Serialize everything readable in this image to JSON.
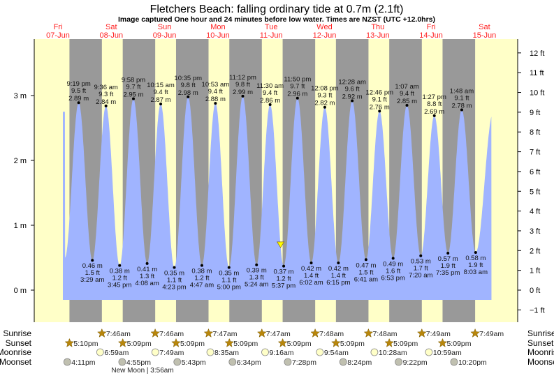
{
  "chart_data": {
    "type": "area",
    "title": "Fletchers Beach: falling  ordinary tide at 0.7m (2.1ft)",
    "subtitle": "Image captured One hour and 24 minutes before low water. Times are NZST (UTC +12.0hrs)",
    "days": [
      {
        "weekday": "Fri",
        "date": "07-Jun"
      },
      {
        "weekday": "Sat",
        "date": "08-Jun"
      },
      {
        "weekday": "Sun",
        "date": "09-Jun"
      },
      {
        "weekday": "Mon",
        "date": "10-Jun"
      },
      {
        "weekday": "Tue",
        "date": "11-Jun"
      },
      {
        "weekday": "Wed",
        "date": "12-Jun"
      },
      {
        "weekday": "Thu",
        "date": "13-Jun"
      },
      {
        "weekday": "Fri",
        "date": "14-Jun"
      },
      {
        "weekday": "Sat",
        "date": "15-Jun"
      }
    ],
    "y_left": {
      "unit": "m",
      "ticks": [
        "0 m",
        "1 m",
        "2 m",
        "3 m"
      ],
      "values": [
        0,
        1,
        2,
        3
      ],
      "range_m": [
        -0.49,
        3.87
      ]
    },
    "y_right": {
      "unit": "ft",
      "ticks": [
        "−1 ft",
        "0 ft",
        "1 ft",
        "2 ft",
        "3 ft",
        "4 ft",
        "5 ft",
        "6 ft",
        "7 ft",
        "8 ft",
        "9 ft",
        "10 ft",
        "11 ft",
        "12 ft"
      ],
      "values": [
        -1,
        0,
        1,
        2,
        3,
        4,
        5,
        6,
        7,
        8,
        9,
        10,
        11,
        12
      ]
    },
    "current": {
      "height_m": 0.7,
      "height_ft": 2.1,
      "day": "11-Jun",
      "time": "4:13 pm"
    },
    "extremes": [
      {
        "type": "high",
        "day": "07-Jun",
        "time": "9:19 pm",
        "m": 2.89,
        "ft": 9.5
      },
      {
        "type": "low",
        "day": "08-Jun",
        "time": "3:29 am",
        "m": 0.46,
        "ft": 1.5
      },
      {
        "type": "high",
        "day": "08-Jun",
        "time": "9:36 am",
        "m": 2.84,
        "ft": 9.3
      },
      {
        "type": "low",
        "day": "08-Jun",
        "time": "3:45 pm",
        "m": 0.38,
        "ft": 1.2
      },
      {
        "type": "high",
        "day": "08-Jun",
        "time": "9:58 pm",
        "m": 2.95,
        "ft": 9.7
      },
      {
        "type": "low",
        "day": "09-Jun",
        "time": "4:08 am",
        "m": 0.41,
        "ft": 1.3
      },
      {
        "type": "high",
        "day": "09-Jun",
        "time": "10:15 am",
        "m": 2.87,
        "ft": 9.4
      },
      {
        "type": "low",
        "day": "09-Jun",
        "time": "4:23 pm",
        "m": 0.35,
        "ft": 1.1
      },
      {
        "type": "high",
        "day": "09-Jun",
        "time": "10:35 pm",
        "m": 2.98,
        "ft": 9.8
      },
      {
        "type": "low",
        "day": "10-Jun",
        "time": "4:47 am",
        "m": 0.38,
        "ft": 1.2
      },
      {
        "type": "high",
        "day": "10-Jun",
        "time": "10:53 am",
        "m": 2.88,
        "ft": 9.4
      },
      {
        "type": "low",
        "day": "10-Jun",
        "time": "5:00 pm",
        "m": 0.35,
        "ft": 1.1
      },
      {
        "type": "high",
        "day": "10-Jun",
        "time": "11:12 pm",
        "m": 2.99,
        "ft": 9.8
      },
      {
        "type": "low",
        "day": "11-Jun",
        "time": "5:24 am",
        "m": 0.39,
        "ft": 1.3
      },
      {
        "type": "high",
        "day": "11-Jun",
        "time": "11:30 am",
        "m": 2.86,
        "ft": 9.4
      },
      {
        "type": "low",
        "day": "11-Jun",
        "time": "5:37 pm",
        "m": 0.37,
        "ft": 1.2
      },
      {
        "type": "high",
        "day": "11-Jun",
        "time": "11:50 pm",
        "m": 2.96,
        "ft": 9.7
      },
      {
        "type": "low",
        "day": "12-Jun",
        "time": "6:02 am",
        "m": 0.42,
        "ft": 1.4
      },
      {
        "type": "high",
        "day": "12-Jun",
        "time": "12:08 pm",
        "m": 2.82,
        "ft": 9.3
      },
      {
        "type": "low",
        "day": "12-Jun",
        "time": "6:15 pm",
        "m": 0.42,
        "ft": 1.4
      },
      {
        "type": "high",
        "day": "13-Jun",
        "time": "12:28 am",
        "m": 2.92,
        "ft": 9.6
      },
      {
        "type": "low",
        "day": "13-Jun",
        "time": "6:41 am",
        "m": 0.47,
        "ft": 1.5
      },
      {
        "type": "high",
        "day": "13-Jun",
        "time": "12:46 pm",
        "m": 2.76,
        "ft": 9.1
      },
      {
        "type": "low",
        "day": "13-Jun",
        "time": "6:53 pm",
        "m": 0.49,
        "ft": 1.6
      },
      {
        "type": "high",
        "day": "14-Jun",
        "time": "1:07 am",
        "m": 2.85,
        "ft": 9.4
      },
      {
        "type": "low",
        "day": "14-Jun",
        "time": "7:20 am",
        "m": 0.53,
        "ft": 1.7
      },
      {
        "type": "high",
        "day": "14-Jun",
        "time": "1:27 pm",
        "m": 2.69,
        "ft": 8.8
      },
      {
        "type": "low",
        "day": "14-Jun",
        "time": "7:35 pm",
        "m": 0.57,
        "ft": 1.9
      },
      {
        "type": "high",
        "day": "15-Jun",
        "time": "1:48 am",
        "m": 2.78,
        "ft": 9.1
      },
      {
        "type": "low",
        "day": "15-Jun",
        "time": "8:03 am",
        "m": 0.58,
        "ft": 1.9
      }
    ],
    "rows": {
      "sunrise": {
        "label": "Sunrise",
        "events": [
          {
            "day": "08-Jun",
            "time": "7:46am"
          },
          {
            "day": "09-Jun",
            "time": "7:46am"
          },
          {
            "day": "10-Jun",
            "time": "7:47am"
          },
          {
            "day": "11-Jun",
            "time": "7:47am"
          },
          {
            "day": "12-Jun",
            "time": "7:48am"
          },
          {
            "day": "13-Jun",
            "time": "7:48am"
          },
          {
            "day": "14-Jun",
            "time": "7:49am"
          },
          {
            "day": "15-Jun",
            "time": "7:49am"
          }
        ]
      },
      "sunset": {
        "label": "Sunset",
        "events": [
          {
            "day": "07-Jun",
            "time": "5:10pm"
          },
          {
            "day": "08-Jun",
            "time": "5:09pm"
          },
          {
            "day": "09-Jun",
            "time": "5:09pm"
          },
          {
            "day": "10-Jun",
            "time": "5:09pm"
          },
          {
            "day": "11-Jun",
            "time": "5:09pm"
          },
          {
            "day": "12-Jun",
            "time": "5:09pm"
          },
          {
            "day": "13-Jun",
            "time": "5:09pm"
          },
          {
            "day": "14-Jun",
            "time": "5:09pm"
          }
        ]
      },
      "moonrise": {
        "label": "Moonrise",
        "events": [
          {
            "day": "08-Jun",
            "time": "6:59am"
          },
          {
            "day": "09-Jun",
            "time": "7:49am"
          },
          {
            "day": "10-Jun",
            "time": "8:35am"
          },
          {
            "day": "11-Jun",
            "time": "9:16am"
          },
          {
            "day": "12-Jun",
            "time": "9:54am"
          },
          {
            "day": "13-Jun",
            "time": "10:28am"
          },
          {
            "day": "14-Jun",
            "time": "10:59am"
          }
        ]
      },
      "moonset": {
        "label": "Moonset",
        "events": [
          {
            "day": "07-Jun",
            "time": "4:11pm"
          },
          {
            "day": "08-Jun",
            "time": "4:55pm"
          },
          {
            "day": "09-Jun",
            "time": "5:43pm"
          },
          {
            "day": "10-Jun",
            "time": "6:34pm"
          },
          {
            "day": "11-Jun",
            "time": "7:28pm"
          },
          {
            "day": "12-Jun",
            "time": "8:24pm"
          },
          {
            "day": "13-Jun",
            "time": "9:22pm"
          },
          {
            "day": "14-Jun",
            "time": "10:20pm"
          }
        ]
      }
    },
    "moon_phase": {
      "text": "New Moon | 3:56am",
      "day": "08-Jun"
    },
    "colors": {
      "day": "#ffffc8",
      "night": "#999999",
      "water": "#a0b4ff",
      "day_label": "#ff2020",
      "sun": "#b8860b",
      "moonrise": "#ffffc8",
      "moonset": "#c0c0b0",
      "current_marker": "#ffff00"
    }
  }
}
